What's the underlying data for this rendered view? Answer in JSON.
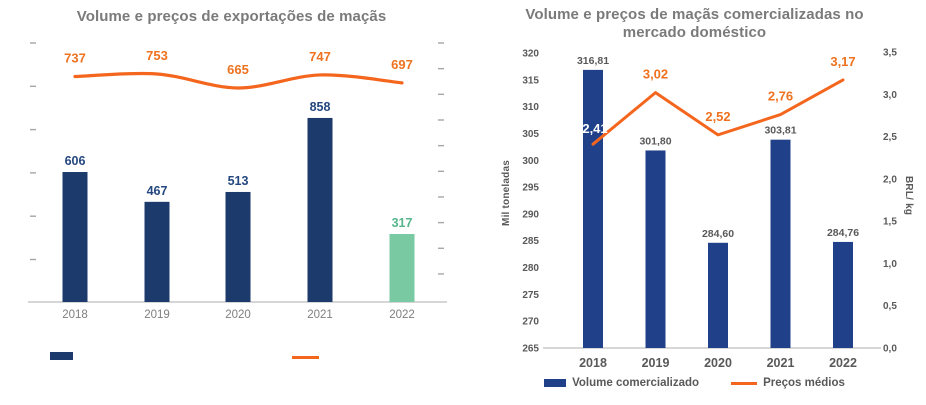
{
  "page": {
    "background": "#ffffff"
  },
  "colors": {
    "bar_navy_left": "#1C3A6B",
    "bar_green_2022": "#79C9A2",
    "bar_blue_right": "#20418A",
    "line_orange": "#F4661E",
    "orange_label": "#EE7220",
    "navy_value_label": "#24477F",
    "green_value_label": "#55B58A",
    "title_gray": "#7A7A7A",
    "axis_text_gray": "#595959",
    "x_label_gray_left": "#7F7F7F",
    "axis_line_gray": "#C9C9C9",
    "tick_gray": "#A6A6A6",
    "white_label": "#FFFFFF"
  },
  "chart_data": [
    {
      "id": "exports",
      "type": "bar",
      "subtype": "combo bar+smooth line, dual unlabeled axes",
      "title": "Volume e preços de exportações de maçãs",
      "categories": [
        "2018",
        "2019",
        "2020",
        "2021",
        "2022"
      ],
      "series": [
        {
          "name": "volume-exportado",
          "type": "bar",
          "values": [
            606,
            467,
            513,
            858,
            317
          ],
          "labels": [
            "606",
            "467",
            "513",
            "858",
            "317"
          ],
          "note": "2022 bar highlighted green"
        },
        {
          "name": "precos",
          "type": "line",
          "smooth": true,
          "values": [
            737,
            753,
            665,
            747,
            697
          ],
          "labels": [
            "737",
            "753",
            "665",
            "747",
            "697"
          ]
        }
      ],
      "axes": {
        "left": {
          "tick_marks": 6,
          "labels_visible": false
        },
        "right": {
          "tick_marks": 10,
          "labels_visible": false
        }
      },
      "legend": {
        "entries": [
          {
            "swatch": "bar"
          },
          {
            "swatch": "line"
          }
        ],
        "labels_visible": false
      }
    },
    {
      "id": "domestic",
      "type": "bar",
      "subtype": "combo bar+line, dual labeled axes",
      "title": "Volume e preços de maçãs comercializadas no mercado doméstico",
      "categories": [
        "2018",
        "2019",
        "2020",
        "2021",
        "2022"
      ],
      "series": [
        {
          "name": "Volume comercializado",
          "type": "bar",
          "values": [
            316.81,
            301.8,
            284.6,
            303.81,
            284.76
          ],
          "labels": [
            "316,81",
            "301,80",
            "284,60",
            "303,81",
            "284,76"
          ]
        },
        {
          "name": "Preços médios",
          "type": "line",
          "smooth": false,
          "values": [
            2.41,
            3.02,
            2.52,
            2.76,
            3.17
          ],
          "labels": [
            "2,41",
            "3,02",
            "2,52",
            "2,76",
            "3,17"
          ]
        }
      ],
      "y_left": {
        "title": "Mil toneladas",
        "min": 265,
        "max": 320,
        "step": 5,
        "tick_labels": [
          "320",
          "315",
          "310",
          "305",
          "300",
          "295",
          "290",
          "285",
          "280",
          "275",
          "270",
          "265"
        ]
      },
      "y_right": {
        "title": "BRL/ kg",
        "min": 0,
        "max": 3.5,
        "step": 0.5,
        "tick_labels": [
          "3,5",
          "3,0",
          "2,5",
          "2,0",
          "1,5",
          "1,0",
          "0,5",
          "0,0"
        ]
      },
      "legend": {
        "entries": [
          {
            "swatch": "bar",
            "label": "Volume comercializado"
          },
          {
            "swatch": "line",
            "label": "Preços médios"
          }
        ]
      }
    }
  ]
}
